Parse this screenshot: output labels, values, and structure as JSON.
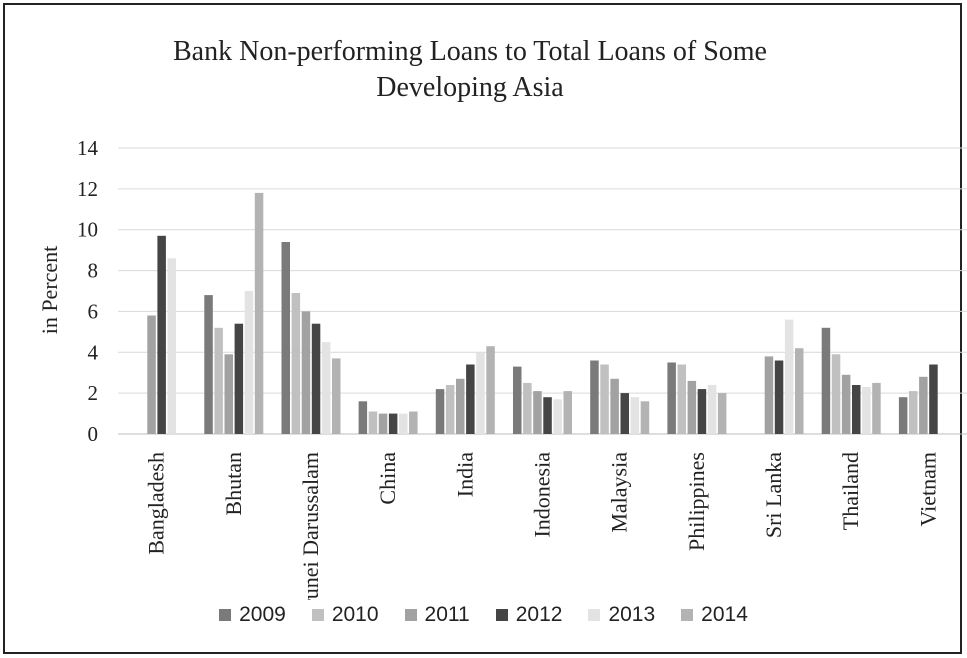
{
  "chart_data": {
    "type": "bar",
    "title": "Bank Non-performing Loans to Total Loans of Some\nDeveloping Asia",
    "ylabel": "in Percent",
    "xlabel": "",
    "ylim": [
      0,
      14
    ],
    "yticks": [
      0,
      2,
      4,
      6,
      8,
      10,
      12,
      14
    ],
    "grid": true,
    "legend_position": "bottom",
    "categories": [
      "Bangladesh",
      "Bhutan",
      "Brunei Darussalam",
      "China",
      "India",
      "Indonesia",
      "Malaysia",
      "Philippines",
      "Sri Lanka",
      "Thailand",
      "Vietnam"
    ],
    "series": [
      {
        "name": "2009",
        "color": "#7a7a7a",
        "values": [
          null,
          6.8,
          9.4,
          1.6,
          2.2,
          3.3,
          3.6,
          3.5,
          null,
          5.2,
          1.8
        ]
      },
      {
        "name": "2010",
        "color": "#c0c0c0",
        "values": [
          null,
          5.2,
          6.9,
          1.1,
          2.4,
          2.5,
          3.4,
          3.4,
          null,
          3.9,
          2.1
        ]
      },
      {
        "name": "2011",
        "color": "#a2a2a2",
        "values": [
          5.8,
          3.9,
          6.0,
          1.0,
          2.7,
          2.1,
          2.7,
          2.6,
          3.8,
          2.9,
          2.8
        ]
      },
      {
        "name": "2012",
        "color": "#454545",
        "values": [
          9.7,
          5.4,
          5.4,
          1.0,
          3.4,
          1.8,
          2.0,
          2.2,
          3.6,
          2.4,
          3.4
        ]
      },
      {
        "name": "2013",
        "color": "#e3e3e3",
        "values": [
          8.6,
          7.0,
          4.5,
          1.0,
          4.0,
          1.7,
          1.8,
          2.4,
          5.6,
          2.3,
          null
        ]
      },
      {
        "name": "2014",
        "color": "#b3b3b3",
        "values": [
          null,
          11.8,
          3.7,
          1.1,
          4.3,
          2.1,
          1.6,
          2.0,
          4.2,
          2.5,
          null
        ]
      }
    ]
  }
}
